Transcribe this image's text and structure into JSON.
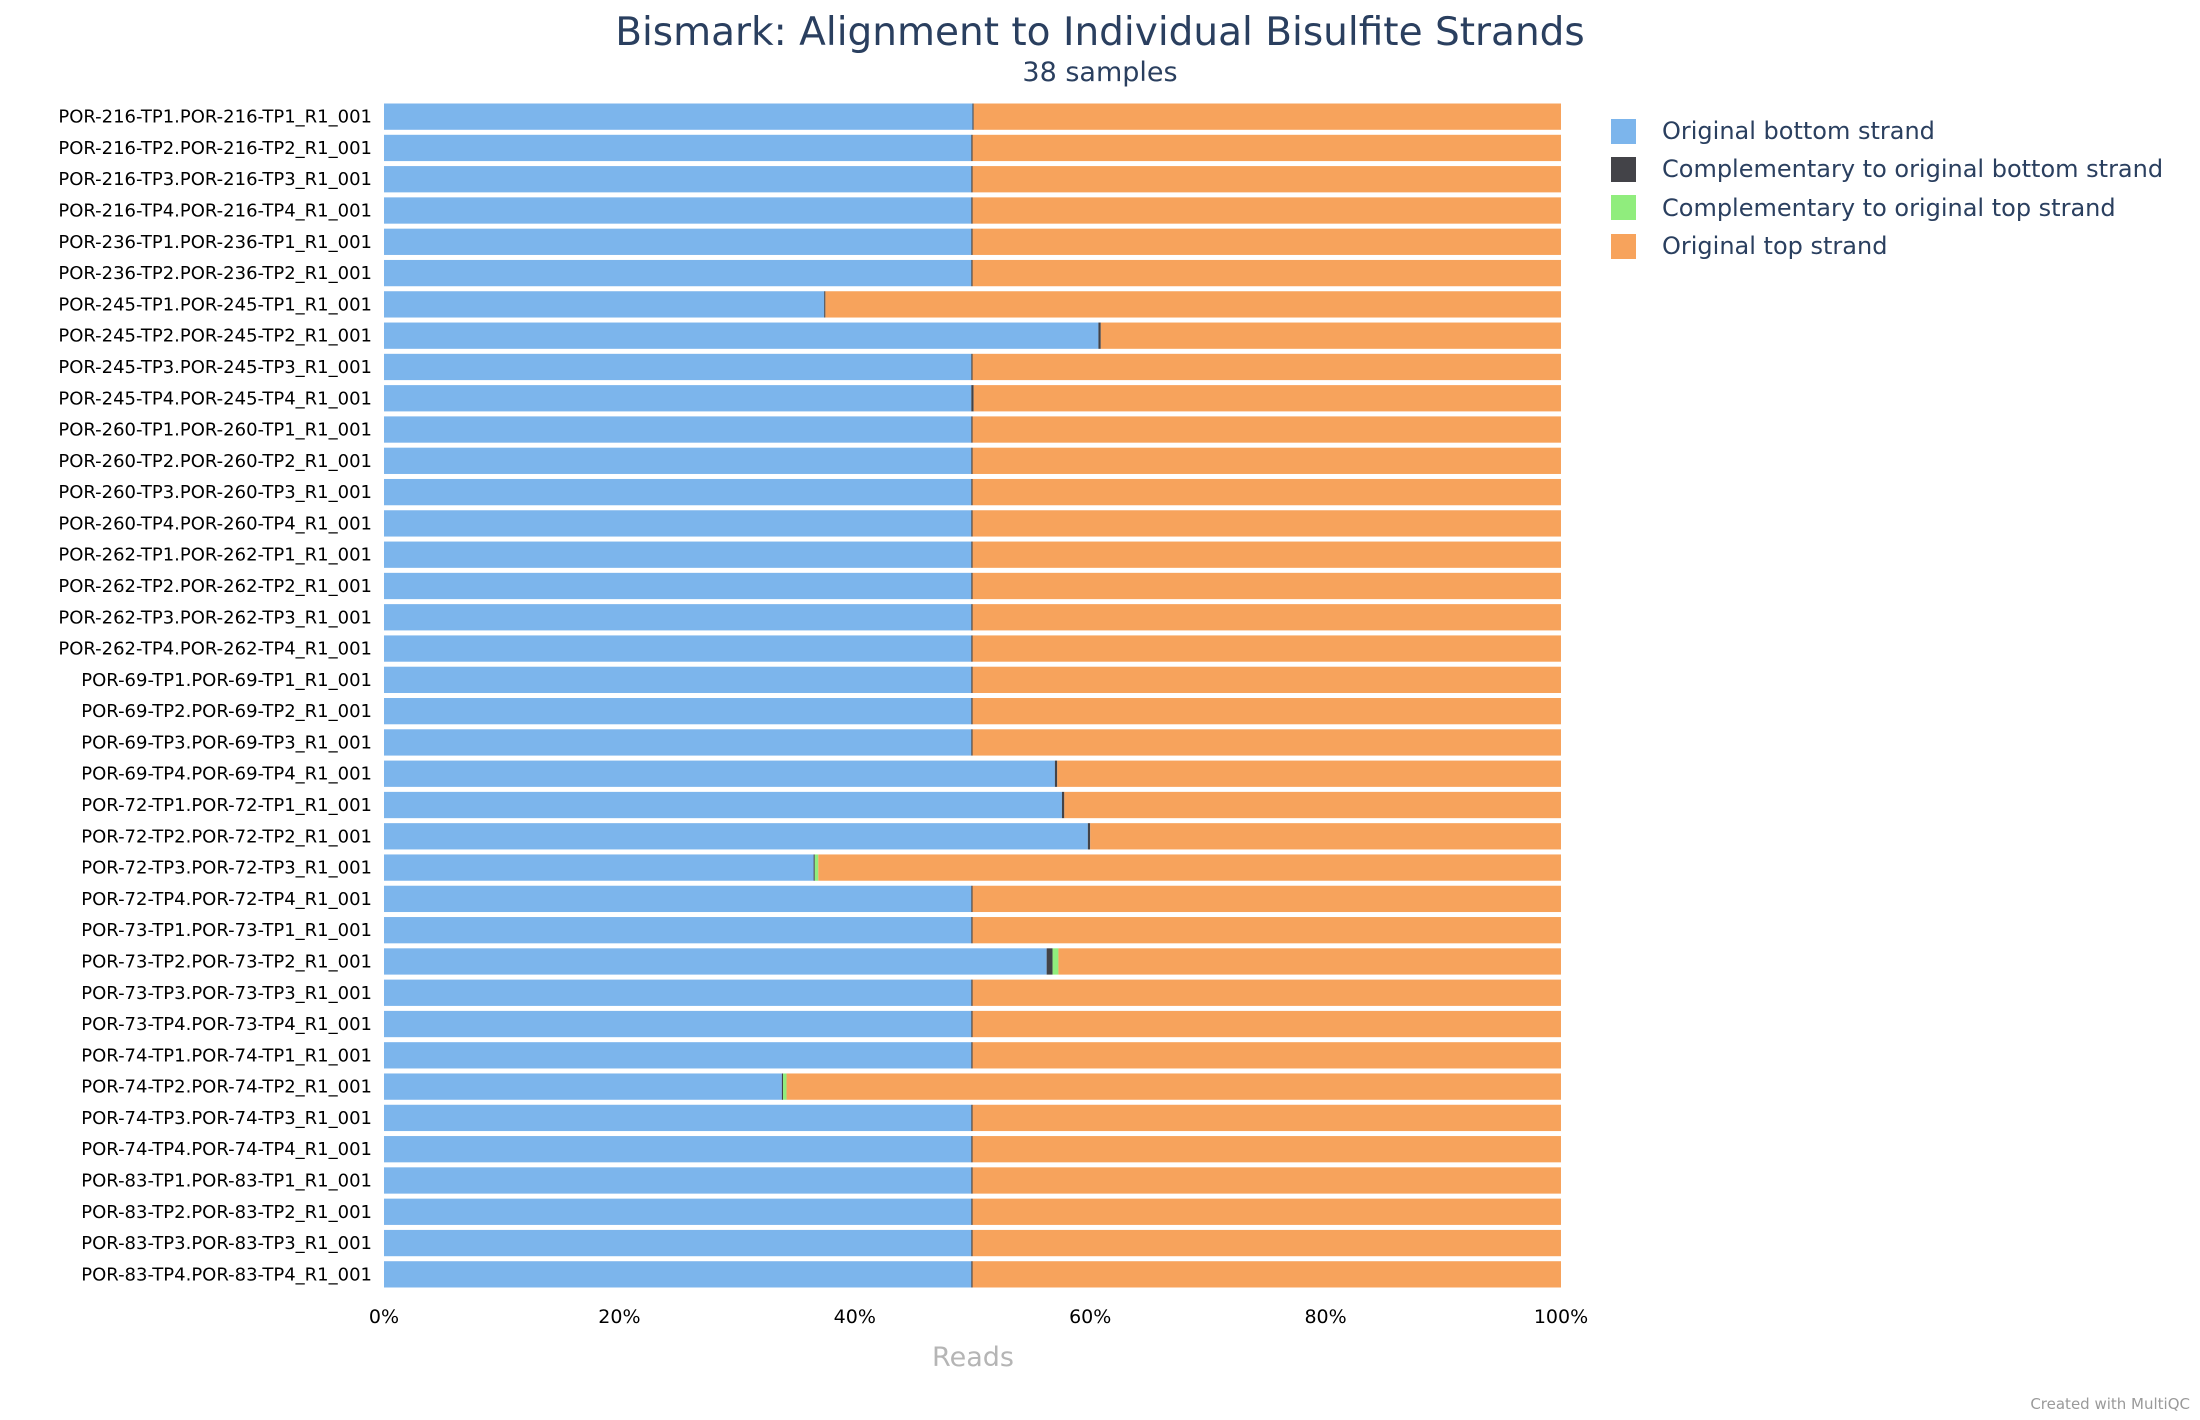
{
  "chart_data": {
    "type": "bar",
    "orientation": "horizontal",
    "stacked": true,
    "title": "Bismark: Alignment to Individual Bisulfite Strands",
    "subtitle": "38 samples",
    "xlabel": "Reads",
    "xlim": [
      0,
      100
    ],
    "x_ticks": [
      "0%",
      "20%",
      "40%",
      "60%",
      "80%",
      "100%"
    ],
    "legend_position": "top-right",
    "categories": [
      "POR-216-TP1.POR-216-TP1_R1_001",
      "POR-216-TP2.POR-216-TP2_R1_001",
      "POR-216-TP3.POR-216-TP3_R1_001",
      "POR-216-TP4.POR-216-TP4_R1_001",
      "POR-236-TP1.POR-236-TP1_R1_001",
      "POR-236-TP2.POR-236-TP2_R1_001",
      "POR-245-TP1.POR-245-TP1_R1_001",
      "POR-245-TP2.POR-245-TP2_R1_001",
      "POR-245-TP3.POR-245-TP3_R1_001",
      "POR-245-TP4.POR-245-TP4_R1_001",
      "POR-260-TP1.POR-260-TP1_R1_001",
      "POR-260-TP2.POR-260-TP2_R1_001",
      "POR-260-TP3.POR-260-TP3_R1_001",
      "POR-260-TP4.POR-260-TP4_R1_001",
      "POR-262-TP1.POR-262-TP1_R1_001",
      "POR-262-TP2.POR-262-TP2_R1_001",
      "POR-262-TP3.POR-262-TP3_R1_001",
      "POR-262-TP4.POR-262-TP4_R1_001",
      "POR-69-TP1.POR-69-TP1_R1_001",
      "POR-69-TP2.POR-69-TP2_R1_001",
      "POR-69-TP3.POR-69-TP3_R1_001",
      "POR-69-TP4.POR-69-TP4_R1_001",
      "POR-72-TP1.POR-72-TP1_R1_001",
      "POR-72-TP2.POR-72-TP2_R1_001",
      "POR-72-TP3.POR-72-TP3_R1_001",
      "POR-72-TP4.POR-72-TP4_R1_001",
      "POR-73-TP1.POR-73-TP1_R1_001",
      "POR-73-TP2.POR-73-TP2_R1_001",
      "POR-73-TP3.POR-73-TP3_R1_001",
      "POR-73-TP4.POR-73-TP4_R1_001",
      "POR-74-TP1.POR-74-TP1_R1_001",
      "POR-74-TP2.POR-74-TP2_R1_001",
      "POR-74-TP3.POR-74-TP3_R1_001",
      "POR-74-TP4.POR-74-TP4_R1_001",
      "POR-83-TP1.POR-83-TP1_R1_001",
      "POR-83-TP2.POR-83-TP2_R1_001",
      "POR-83-TP3.POR-83-TP3_R1_001",
      "POR-83-TP4.POR-83-TP4_R1_001"
    ],
    "series": [
      {
        "name": "Original bottom strand",
        "color": "#7cb5ec",
        "values": [
          50.0,
          49.9,
          49.9,
          49.9,
          49.9,
          49.9,
          37.4,
          60.7,
          49.9,
          49.9,
          49.9,
          49.9,
          49.9,
          49.9,
          49.9,
          49.9,
          49.9,
          49.9,
          49.9,
          49.9,
          49.9,
          57.0,
          57.6,
          59.8,
          36.5,
          49.9,
          49.9,
          56.3,
          49.9,
          49.9,
          49.9,
          33.8,
          49.9,
          49.9,
          49.9,
          49.9,
          49.9,
          49.9
        ]
      },
      {
        "name": "Complementary to original bottom strand",
        "color": "#434348",
        "values": [
          0.1,
          0.1,
          0.1,
          0.1,
          0.1,
          0.1,
          0.1,
          0.2,
          0.1,
          0.2,
          0.1,
          0.1,
          0.1,
          0.1,
          0.1,
          0.1,
          0.1,
          0.1,
          0.1,
          0.1,
          0.1,
          0.2,
          0.2,
          0.2,
          0.1,
          0.1,
          0.1,
          0.5,
          0.1,
          0.1,
          0.1,
          0.1,
          0.1,
          0.1,
          0.1,
          0.1,
          0.1,
          0.1
        ]
      },
      {
        "name": "Complementary to original top strand",
        "color": "#90ed7d",
        "values": [
          0,
          0,
          0,
          0,
          0,
          0,
          0,
          0,
          0,
          0,
          0,
          0,
          0,
          0,
          0,
          0,
          0,
          0,
          0,
          0,
          0,
          0,
          0,
          0,
          0.3,
          0,
          0,
          0.5,
          0,
          0,
          0,
          0.3,
          0,
          0,
          0,
          0,
          0,
          0
        ]
      },
      {
        "name": "Original top strand",
        "color": "#f7a35c",
        "values": [
          49.9,
          50.0,
          50.0,
          50.0,
          50.0,
          50.0,
          62.5,
          39.1,
          50.0,
          49.9,
          50.0,
          50.0,
          50.0,
          50.0,
          50.0,
          50.0,
          50.0,
          50.0,
          50.0,
          50.0,
          50.0,
          42.8,
          42.2,
          40.0,
          63.1,
          50.0,
          50.0,
          42.7,
          50.0,
          50.0,
          50.0,
          65.8,
          50.0,
          50.0,
          50.0,
          50.0,
          50.0,
          50.0
        ]
      }
    ]
  },
  "footer": {
    "credit": "Created with MultiQC"
  }
}
